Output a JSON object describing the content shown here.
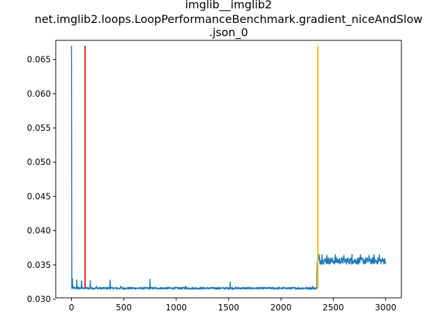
{
  "chart_data": {
    "type": "line",
    "title_lines": [
      "imglib__imglib2",
      "net.imglib2.loops.LoopPerformanceBenchmark.gradient_niceAndSlow",
      ".json_0"
    ],
    "xlabel": "",
    "ylabel": "",
    "xlim": [
      -150,
      3150
    ],
    "ylim": [
      0.0302,
      0.0678
    ],
    "x_ticks": [
      0,
      500,
      1000,
      1500,
      2000,
      2500,
      3000
    ],
    "x_tick_labels": [
      "0",
      "500",
      "1000",
      "1500",
      "2000",
      "2500",
      "3000"
    ],
    "y_ticks": [
      0.03,
      0.035,
      0.04,
      0.045,
      0.05,
      0.055,
      0.06,
      0.065
    ],
    "y_tick_labels": [
      "0.030",
      "0.035",
      "0.040",
      "0.045",
      "0.050",
      "0.055",
      "0.060",
      "0.065"
    ],
    "grid": false,
    "series": [
      {
        "color": "#1f77b4",
        "x_start": 0,
        "x_end": 2999,
        "spikes": [
          [
            0,
            0.067
          ],
          [
            8,
            0.033
          ],
          [
            20,
            0.0318
          ],
          [
            50,
            0.0328
          ],
          [
            60,
            0.0318
          ],
          [
            95,
            0.0327
          ],
          [
            105,
            0.0318
          ],
          [
            180,
            0.0327
          ],
          [
            240,
            0.0319
          ],
          [
            370,
            0.0328
          ],
          [
            470,
            0.0319
          ],
          [
            750,
            0.0329
          ],
          [
            1090,
            0.0319
          ],
          [
            1515,
            0.0325
          ],
          [
            2300,
            0.0319
          ]
        ],
        "baseline_before": 0.0316,
        "noise_before": 0.0003,
        "change_x": 2345,
        "baseline_after": 0.0354,
        "noise_after": 0.001,
        "spikes_after": [
          [
            2365,
            0.0365
          ],
          [
            2390,
            0.0365
          ],
          [
            2440,
            0.0364
          ],
          [
            2520,
            0.0365
          ],
          [
            2600,
            0.0364
          ],
          [
            2680,
            0.0365
          ],
          [
            2760,
            0.0365
          ],
          [
            2840,
            0.0364
          ],
          [
            2890,
            0.0365
          ],
          [
            2940,
            0.0365
          ]
        ]
      }
    ],
    "vertical_lines": [
      {
        "x": 130,
        "y_from": 0.0316,
        "y_to": 0.067,
        "color": "#d62728"
      },
      {
        "x": 2352,
        "y_from": 0.0316,
        "y_to": 0.067,
        "color": "#ffbf00"
      }
    ]
  }
}
